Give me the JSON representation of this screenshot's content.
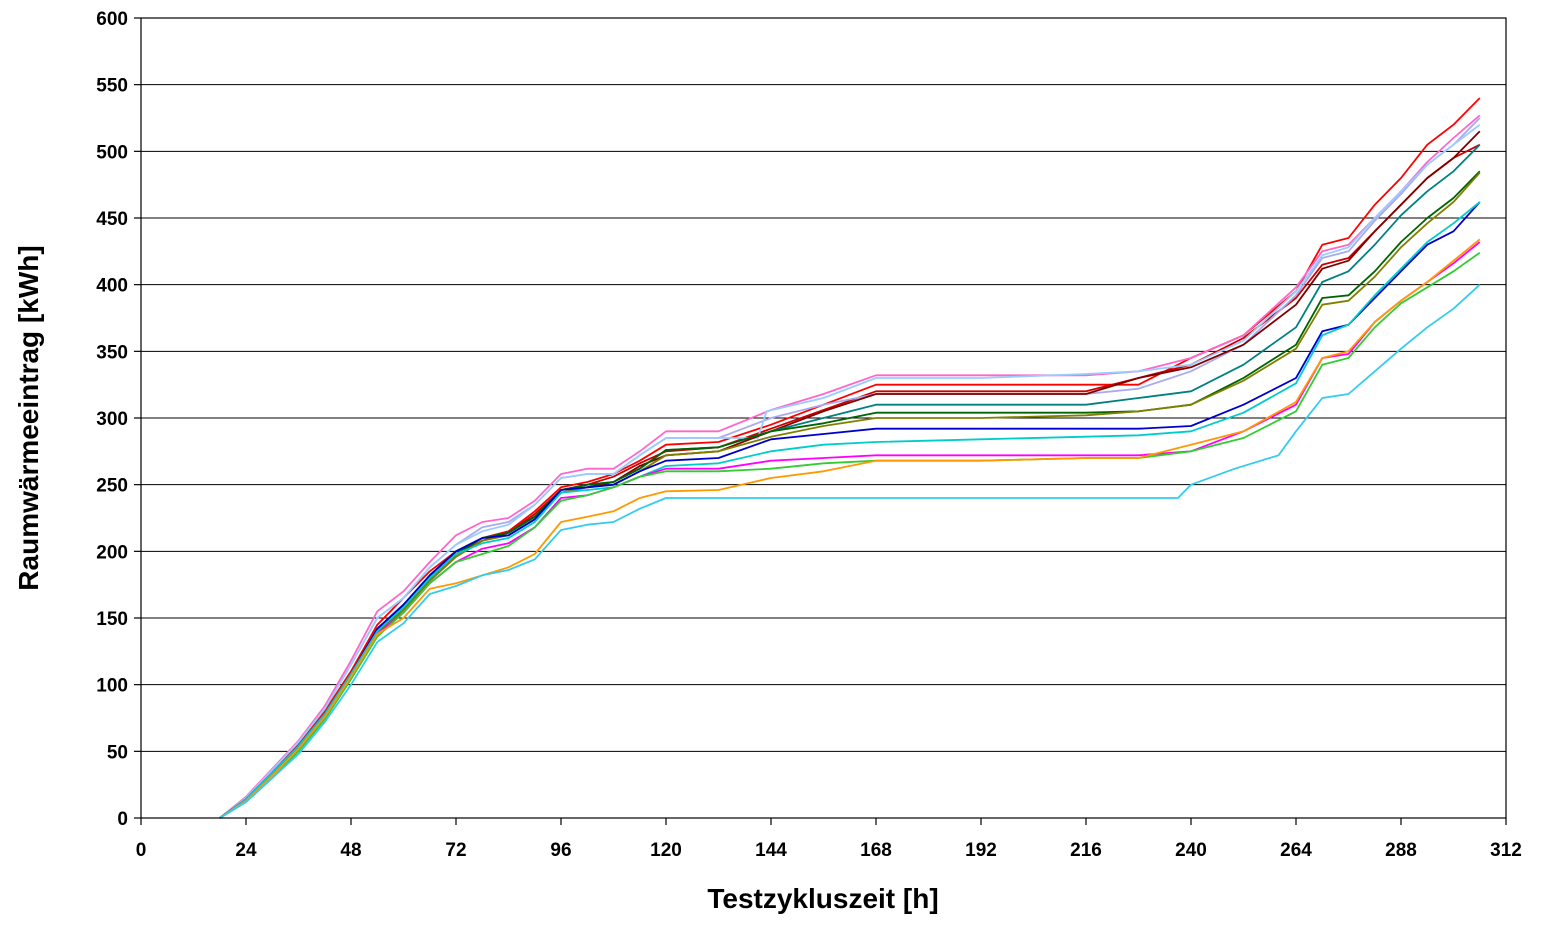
{
  "chart_data": {
    "type": "line",
    "title": "",
    "xlabel": "Testzykluszeit [h]",
    "ylabel": "Raumwärmeeintrag [kWh]",
    "xlim": [
      0,
      312
    ],
    "ylim": [
      0,
      600
    ],
    "xticks": [
      0,
      24,
      48,
      72,
      96,
      120,
      144,
      168,
      192,
      216,
      240,
      264,
      288,
      312
    ],
    "yticks": [
      0,
      50,
      100,
      150,
      200,
      250,
      300,
      350,
      400,
      450,
      500,
      550,
      600
    ],
    "grid": "horizontal",
    "legend": "none",
    "series": [
      {
        "color": "#ff0000",
        "x": [
          18,
          24,
          30,
          36,
          42,
          48,
          54,
          60,
          66,
          72,
          78,
          84,
          90,
          96,
          102,
          108,
          114,
          120,
          132,
          144,
          156,
          168,
          192,
          216,
          228,
          240,
          252,
          264,
          270,
          276,
          282,
          288,
          294,
          300,
          306
        ],
        "y": [
          0,
          15,
          35,
          55,
          80,
          110,
          145,
          165,
          185,
          200,
          210,
          215,
          230,
          248,
          252,
          258,
          268,
          280,
          282,
          295,
          310,
          325,
          325,
          325,
          325,
          345,
          362,
          395,
          430,
          435,
          460,
          480,
          505,
          520,
          540
        ]
      },
      {
        "color": "#cc0000",
        "x": [
          18,
          24,
          30,
          36,
          42,
          48,
          54,
          60,
          66,
          72,
          78,
          84,
          90,
          96,
          102,
          108,
          114,
          120,
          132,
          144,
          156,
          168,
          192,
          216,
          228,
          240,
          252,
          264,
          270,
          276,
          282,
          288,
          294,
          300,
          306
        ],
        "y": [
          0,
          14,
          34,
          54,
          78,
          108,
          142,
          160,
          180,
          198,
          208,
          214,
          228,
          246,
          250,
          256,
          266,
          275,
          278,
          292,
          306,
          320,
          320,
          320,
          330,
          340,
          360,
          390,
          415,
          420,
          440,
          460,
          480,
          495,
          505
        ]
      },
      {
        "color": "#ff66cc",
        "x": [
          18,
          24,
          30,
          36,
          42,
          48,
          54,
          60,
          66,
          72,
          78,
          84,
          90,
          96,
          102,
          108,
          114,
          120,
          132,
          144,
          156,
          168,
          192,
          216,
          228,
          240,
          252,
          264,
          270,
          276,
          282,
          288,
          294,
          300,
          306
        ],
        "y": [
          0,
          16,
          37,
          58,
          84,
          118,
          155,
          170,
          192,
          212,
          222,
          225,
          238,
          258,
          262,
          262,
          275,
          290,
          290,
          306,
          318,
          332,
          332,
          332,
          335,
          345,
          362,
          398,
          425,
          430,
          450,
          470,
          492,
          510,
          527
        ]
      },
      {
        "color": "#aaaaee",
        "x": [
          18,
          24,
          30,
          36,
          42,
          48,
          54,
          60,
          66,
          72,
          78,
          84,
          90,
          96,
          102,
          108,
          114,
          120,
          132,
          144,
          156,
          168,
          192,
          216,
          228,
          240,
          252,
          264,
          270,
          276,
          282,
          288,
          294,
          300,
          306
        ],
        "y": [
          0,
          15,
          36,
          57,
          82,
          115,
          150,
          165,
          188,
          205,
          218,
          222,
          235,
          255,
          258,
          258,
          272,
          285,
          285,
          300,
          310,
          318,
          318,
          318,
          322,
          335,
          355,
          392,
          420,
          425,
          448,
          468,
          490,
          505,
          525
        ]
      },
      {
        "color": "#99ccff",
        "x": [
          18,
          24,
          30,
          36,
          42,
          48,
          54,
          60,
          66,
          72,
          78,
          84,
          90,
          96,
          102,
          108,
          114,
          120,
          132,
          141,
          143,
          156,
          168,
          192,
          216,
          228,
          240,
          252,
          264,
          270,
          276,
          282,
          288,
          294,
          300,
          306
        ],
        "y": [
          0,
          15,
          36,
          57,
          82,
          115,
          150,
          165,
          188,
          205,
          215,
          220,
          235,
          255,
          258,
          258,
          272,
          285,
          285,
          285,
          305,
          315,
          330,
          330,
          333,
          335,
          340,
          358,
          395,
          422,
          428,
          450,
          470,
          490,
          505,
          520
        ]
      },
      {
        "color": "#800000",
        "x": [
          18,
          24,
          30,
          36,
          42,
          48,
          54,
          60,
          66,
          72,
          78,
          84,
          90,
          96,
          102,
          108,
          114,
          120,
          132,
          144,
          156,
          168,
          192,
          216,
          228,
          240,
          252,
          264,
          270,
          276,
          282,
          288,
          294,
          300,
          306
        ],
        "y": [
          0,
          13,
          33,
          52,
          76,
          106,
          138,
          158,
          178,
          196,
          208,
          214,
          226,
          244,
          248,
          252,
          264,
          272,
          275,
          290,
          305,
          318,
          318,
          318,
          330,
          338,
          355,
          385,
          412,
          418,
          440,
          460,
          480,
          495,
          515
        ]
      },
      {
        "color": "#008080",
        "x": [
          18,
          24,
          30,
          36,
          42,
          48,
          54,
          60,
          66,
          72,
          78,
          84,
          90,
          96,
          102,
          108,
          114,
          120,
          132,
          144,
          156,
          168,
          192,
          216,
          228,
          240,
          252,
          264,
          270,
          276,
          282,
          288,
          294,
          300,
          306
        ],
        "y": [
          0,
          14,
          34,
          54,
          78,
          108,
          142,
          160,
          182,
          200,
          210,
          214,
          226,
          246,
          250,
          252,
          262,
          276,
          278,
          290,
          300,
          310,
          310,
          310,
          315,
          320,
          340,
          368,
          402,
          410,
          430,
          452,
          470,
          485,
          505
        ]
      },
      {
        "color": "#006400",
        "x": [
          18,
          24,
          30,
          36,
          42,
          48,
          54,
          60,
          66,
          72,
          78,
          84,
          90,
          96,
          102,
          108,
          114,
          120,
          132,
          144,
          156,
          168,
          192,
          216,
          228,
          240,
          252,
          264,
          270,
          276,
          282,
          288,
          294,
          300,
          306
        ],
        "y": [
          0,
          14,
          34,
          53,
          77,
          107,
          140,
          158,
          180,
          198,
          210,
          214,
          226,
          246,
          250,
          252,
          262,
          276,
          278,
          290,
          296,
          304,
          304,
          304,
          305,
          310,
          330,
          355,
          390,
          392,
          410,
          432,
          450,
          465,
          485
        ]
      },
      {
        "color": "#808000",
        "x": [
          18,
          24,
          30,
          36,
          42,
          48,
          54,
          60,
          66,
          72,
          78,
          84,
          90,
          96,
          102,
          108,
          114,
          120,
          132,
          144,
          156,
          168,
          192,
          216,
          228,
          240,
          252,
          264,
          270,
          276,
          282,
          288,
          294,
          300,
          306
        ],
        "y": [
          0,
          13,
          33,
          52,
          76,
          106,
          138,
          156,
          178,
          196,
          208,
          212,
          224,
          244,
          248,
          250,
          260,
          272,
          275,
          286,
          294,
          300,
          300,
          302,
          305,
          310,
          328,
          352,
          385,
          388,
          406,
          428,
          446,
          462,
          484
        ]
      },
      {
        "color": "#0000cc",
        "x": [
          18,
          24,
          30,
          36,
          42,
          48,
          54,
          60,
          66,
          72,
          78,
          84,
          90,
          96,
          102,
          108,
          114,
          120,
          132,
          144,
          156,
          168,
          192,
          216,
          228,
          240,
          252,
          264,
          270,
          276,
          282,
          288,
          294,
          300,
          306
        ],
        "y": [
          0,
          14,
          34,
          54,
          78,
          108,
          142,
          160,
          182,
          200,
          210,
          212,
          224,
          246,
          248,
          250,
          260,
          268,
          270,
          284,
          288,
          292,
          292,
          292,
          292,
          294,
          310,
          330,
          365,
          370,
          390,
          410,
          430,
          440,
          462
        ]
      },
      {
        "color": "#00cccc",
        "x": [
          18,
          24,
          30,
          36,
          42,
          48,
          54,
          60,
          66,
          72,
          78,
          84,
          90,
          96,
          102,
          108,
          114,
          120,
          132,
          144,
          156,
          168,
          192,
          216,
          228,
          240,
          252,
          264,
          270,
          276,
          282,
          288,
          294,
          300,
          306
        ],
        "y": [
          0,
          14,
          34,
          54,
          78,
          108,
          140,
          158,
          180,
          198,
          206,
          210,
          222,
          244,
          246,
          248,
          256,
          264,
          266,
          275,
          280,
          282,
          284,
          286,
          287,
          290,
          304,
          326,
          362,
          370,
          392,
          412,
          432,
          446,
          462
        ]
      },
      {
        "color": "#ff00ff",
        "x": [
          18,
          24,
          30,
          36,
          42,
          48,
          54,
          60,
          66,
          72,
          78,
          84,
          90,
          96,
          102,
          108,
          114,
          120,
          132,
          144,
          156,
          168,
          192,
          216,
          228,
          240,
          252,
          264,
          270,
          276,
          282,
          288,
          294,
          300,
          306
        ],
        "y": [
          0,
          13,
          32,
          52,
          76,
          106,
          138,
          154,
          176,
          192,
          202,
          206,
          218,
          240,
          242,
          248,
          256,
          262,
          262,
          268,
          270,
          272,
          272,
          272,
          272,
          275,
          290,
          310,
          345,
          348,
          372,
          388,
          402,
          416,
          432
        ]
      },
      {
        "color": "#33cc33",
        "x": [
          18,
          24,
          30,
          36,
          42,
          48,
          54,
          60,
          66,
          72,
          78,
          84,
          90,
          96,
          102,
          108,
          114,
          120,
          132,
          144,
          156,
          168,
          192,
          216,
          228,
          240,
          252,
          264,
          270,
          276,
          282,
          288,
          294,
          300,
          306
        ],
        "y": [
          0,
          12,
          30,
          50,
          74,
          104,
          136,
          154,
          176,
          192,
          198,
          204,
          218,
          238,
          242,
          248,
          256,
          260,
          260,
          262,
          266,
          268,
          268,
          270,
          270,
          275,
          285,
          305,
          340,
          345,
          368,
          386,
          398,
          410,
          424
        ]
      },
      {
        "color": "#ff9900",
        "x": [
          18,
          24,
          30,
          36,
          42,
          48,
          54,
          60,
          66,
          72,
          78,
          84,
          90,
          96,
          102,
          108,
          114,
          120,
          132,
          144,
          156,
          168,
          192,
          216,
          228,
          240,
          252,
          264,
          270,
          276,
          282,
          288,
          294,
          300,
          306
        ],
        "y": [
          0,
          13,
          32,
          52,
          76,
          106,
          138,
          150,
          172,
          176,
          182,
          188,
          198,
          222,
          226,
          230,
          240,
          245,
          246,
          255,
          260,
          268,
          268,
          270,
          270,
          280,
          290,
          312,
          345,
          350,
          372,
          388,
          402,
          418,
          434
        ]
      },
      {
        "color": "#33ccee",
        "x": [
          18,
          24,
          30,
          36,
          42,
          48,
          54,
          60,
          66,
          72,
          78,
          84,
          90,
          96,
          102,
          108,
          114,
          120,
          132,
          144,
          156,
          168,
          192,
          216,
          228,
          237,
          240,
          250,
          260,
          264,
          270,
          276,
          282,
          288,
          294,
          300,
          306
        ],
        "y": [
          0,
          12,
          30,
          48,
          72,
          100,
          132,
          146,
          168,
          174,
          182,
          186,
          194,
          216,
          220,
          222,
          232,
          240,
          240,
          240,
          240,
          240,
          240,
          240,
          240,
          240,
          250,
          262,
          272,
          290,
          315,
          318,
          335,
          352,
          368,
          382,
          400
        ]
      }
    ]
  }
}
